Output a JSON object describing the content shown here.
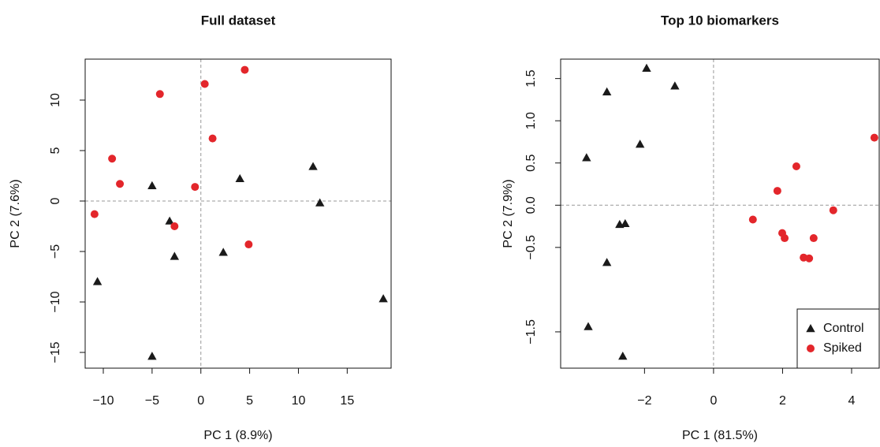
{
  "chart_data": [
    {
      "type": "scatter",
      "title": "Full dataset",
      "xlabel": "PC 1 (8.9%)",
      "ylabel": "PC 2 (7.6%)",
      "xlim": [
        -11.86,
        19.5
      ],
      "ylim": [
        -16.56,
        14.06
      ],
      "xticks": [
        {
          "value": -10,
          "label": "−10"
        },
        {
          "value": -5,
          "label": "−5"
        },
        0,
        5,
        10,
        15
      ],
      "yticks": [
        {
          "value": -15,
          "label": "−15"
        },
        {
          "value": -10,
          "label": "−10"
        },
        {
          "value": -5,
          "label": "−5"
        },
        0,
        5,
        10
      ],
      "reference_lines": {
        "x": 0,
        "y": 0
      },
      "series": [
        {
          "color": "#1a1a1a",
          "marker": "triangle",
          "x": [
            11.5,
            4.0,
            -5.0,
            12.2,
            -3.2,
            -2.7,
            2.3,
            -10.6,
            18.7,
            -5.0
          ],
          "values": [
            3.4,
            2.2,
            1.5,
            -0.2,
            -2.0,
            -5.5,
            -5.1,
            -8.0,
            -9.7,
            -15.4
          ]
        },
        {
          "color": "#e3262b",
          "marker": "circle",
          "x": [
            4.5,
            0.4,
            -4.2,
            1.2,
            -9.1,
            -8.3,
            -0.6,
            -10.9,
            -2.7,
            4.9
          ],
          "values": [
            13.0,
            11.6,
            10.6,
            6.2,
            4.2,
            1.7,
            1.4,
            -1.3,
            -2.5,
            -4.3
          ]
        }
      ]
    },
    {
      "type": "scatter",
      "title": "Top 10 biomarkers",
      "xlabel": "PC 1 (81.5%)",
      "ylabel": "PC 2 (7.9%)",
      "xlim": [
        -4.43,
        4.8
      ],
      "ylim": [
        -1.93,
        1.73
      ],
      "xticks": [
        {
          "value": -2,
          "label": "−2"
        },
        0,
        2,
        4
      ],
      "yticks": [
        {
          "value": -1.5,
          "label": "−1.5"
        },
        {
          "value": -0.5,
          "label": "−0.5"
        },
        {
          "value": 0,
          "label": "0.0"
        },
        0.5,
        {
          "value": 1,
          "label": "1.0"
        },
        1.5
      ],
      "reference_lines": {
        "x": 0,
        "y": 0
      },
      "legend": "bottomright",
      "series": [
        {
          "name": "Control",
          "color": "#1a1a1a",
          "marker": "triangle",
          "x": [
            -1.94,
            -1.12,
            -3.09,
            -2.13,
            -3.68,
            -2.72,
            -2.56,
            -3.09,
            -3.63,
            -2.63
          ],
          "values": [
            1.62,
            1.41,
            1.34,
            0.72,
            0.56,
            -0.23,
            -0.22,
            -0.68,
            -1.44,
            -1.79
          ]
        },
        {
          "name": "Spiked",
          "color": "#e3262b",
          "marker": "circle",
          "x": [
            4.66,
            1.85,
            2.4,
            1.14,
            1.99,
            2.06,
            3.47,
            2.9,
            2.61,
            2.77
          ],
          "values": [
            0.8,
            0.17,
            0.46,
            -0.17,
            -0.33,
            -0.39,
            -0.06,
            -0.39,
            -0.62,
            -0.63
          ]
        }
      ]
    }
  ]
}
